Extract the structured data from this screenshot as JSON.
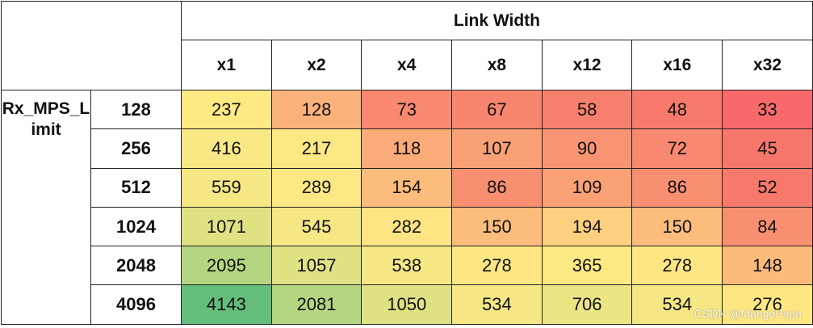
{
  "header": {
    "group_label": "Link Width",
    "columns": [
      "x1",
      "x2",
      "x4",
      "x8",
      "x12",
      "x16",
      "x32"
    ]
  },
  "row_group_label": "Rx_MPS_Limit",
  "rows": [
    {
      "label": "128",
      "values": [
        237,
        128,
        73,
        67,
        58,
        48,
        33
      ],
      "colors": [
        "#fee983",
        "#fbb27a",
        "#f8896f",
        "#f8866e",
        "#f7806d",
        "#f7796b",
        "#f8696b"
      ]
    },
    {
      "label": "256",
      "values": [
        416,
        217,
        118,
        107,
        90,
        72,
        45
      ],
      "colors": [
        "#f9e984",
        "#fee883",
        "#fbab78",
        "#faa076",
        "#f99473",
        "#f8886f",
        "#f7766b"
      ]
    },
    {
      "label": "512",
      "values": [
        559,
        289,
        154,
        86,
        109,
        86,
        52
      ],
      "colors": [
        "#f4e784",
        "#fee883",
        "#fcbc7b",
        "#f88f71",
        "#faa176",
        "#f88f71",
        "#f7796c"
      ]
    },
    {
      "label": "1024",
      "values": [
        1071,
        545,
        282,
        150,
        194,
        150,
        84
      ],
      "colors": [
        "#dfe283",
        "#f4e784",
        "#fee482",
        "#fcbc7b",
        "#fdd07f",
        "#fcbc7b",
        "#f88f71"
      ]
    },
    {
      "label": "2048",
      "values": [
        2095,
        1057,
        538,
        278,
        365,
        278,
        148
      ],
      "colors": [
        "#b5d680",
        "#dfe283",
        "#f4e784",
        "#fee783",
        "#fbe983",
        "#fee783",
        "#fcbb7b"
      ]
    },
    {
      "label": "4096",
      "values": [
        4143,
        2081,
        1050,
        534,
        706,
        534,
        276
      ],
      "colors": [
        "#63be7b",
        "#b5d680",
        "#dfe283",
        "#f4e784",
        "#ede584",
        "#f4e784",
        "#fee783"
      ]
    }
  ],
  "watermark": "CSDN @MangoPapa"
}
